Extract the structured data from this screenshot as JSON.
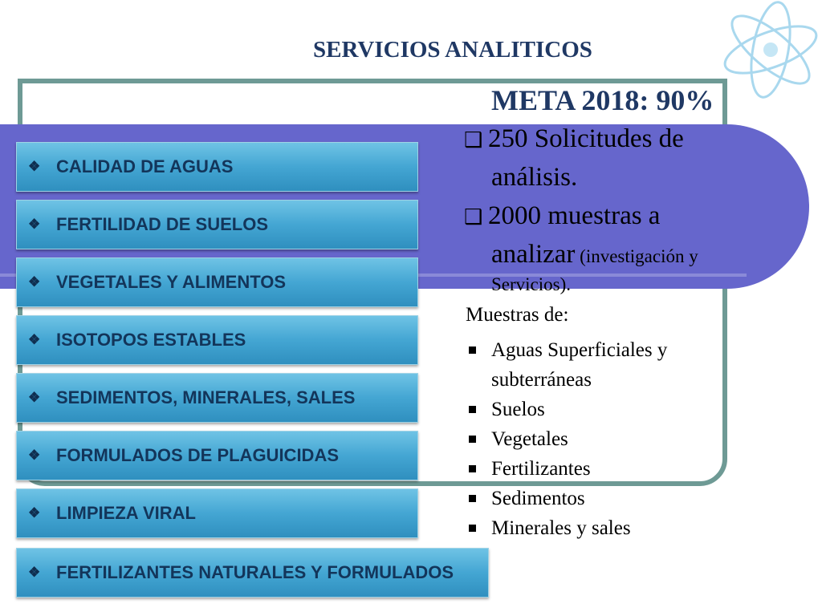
{
  "title": "SERVICIOS ANALITICOS",
  "services": [
    "CALIDAD  DE AGUAS",
    "FERTILIDAD DE SUELOS",
    "VEGETALES Y ALIMENTOS",
    "ISOTOPOS ESTABLES",
    "SEDIMENTOS, MINERALES, SALES",
    "FORMULADOS DE PLAGUICIDAS",
    "LIMPIEZA VIRAL",
    "FERTILIZANTES NATURALES Y FORMULADOS"
  ],
  "meta": "META 2018: 90%",
  "goal1": {
    "line1": "250 Solicitudes de",
    "line2": "análisis."
  },
  "goal2": {
    "line1": "2000 muestras a",
    "line2_main": "analizar",
    "line2_small": " (investigación y",
    "line3": "Servicios)."
  },
  "muestras_label": "Muestras de:",
  "muestras": [
    "Aguas Superficiales y",
    "subterráneas",
    "Suelos",
    "Vegetales",
    "Fertilizantes",
    "Sedimentos",
    "Minerales y sales"
  ],
  "colors": {
    "band": "#6666cc",
    "frame": "#6e9a95",
    "button": "#44a6d3",
    "title": "#1f3864"
  },
  "icons": {
    "bullet": "diamond-bullet-icon",
    "decoration": "atom-icon"
  }
}
